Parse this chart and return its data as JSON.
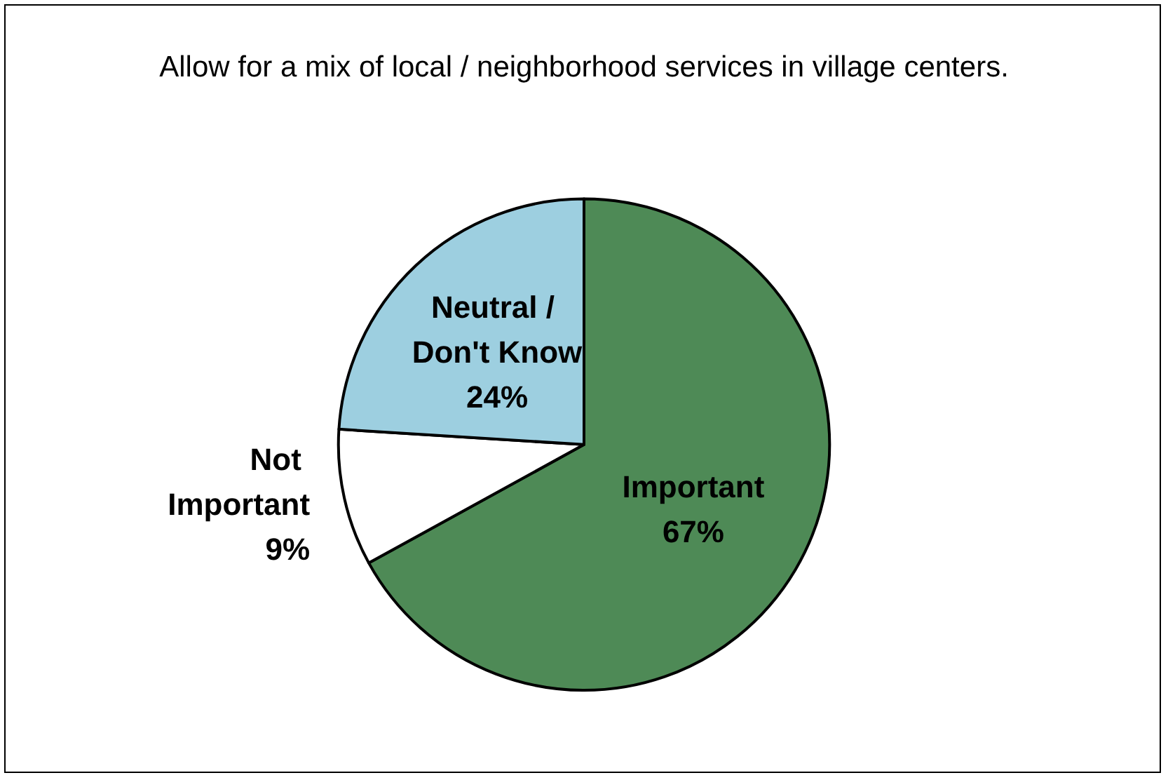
{
  "chart_data": {
    "type": "pie",
    "title": "Allow for a mix of local / neighborhood services in village centers.",
    "categories": [
      "Important",
      "Not Important",
      "Neutral / Don't Know"
    ],
    "values": [
      67,
      9,
      24
    ],
    "value_labels": [
      "67%",
      "9%",
      "24%"
    ],
    "colors": [
      "#4e8a56",
      "#ffffff",
      "#9dcfe0"
    ],
    "legend": false
  }
}
